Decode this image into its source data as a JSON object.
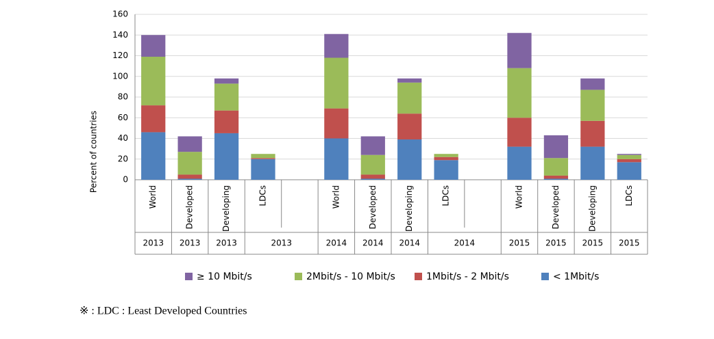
{
  "chart_data": {
    "type": "stacked_bar",
    "y_label": "Percent of countries",
    "categories": [
      "World",
      "Developed",
      "Developing",
      "LDCs",
      null,
      "World",
      "Developed",
      "Developing",
      "LDCs",
      null,
      "World",
      "Developed",
      "Developing",
      "LDCs"
    ],
    "years": [
      "2013",
      "2013",
      "2013",
      "2013",
      null,
      "2014",
      "2014",
      "2014",
      "2014",
      null,
      "2015",
      "2015",
      "2015",
      "2015"
    ],
    "series": [
      {
        "name": "< 1Mbit/s",
        "color": "#4f81bd",
        "values": [
          46,
          1,
          45,
          20,
          null,
          40,
          1,
          39,
          19,
          null,
          32,
          1,
          32,
          17
        ]
      },
      {
        "name": "1Mbit/s - 2 Mbit/s",
        "color": "#c0504d",
        "values": [
          26,
          4,
          22,
          1,
          null,
          29,
          4,
          25,
          3,
          null,
          28,
          3,
          25,
          3
        ]
      },
      {
        "name": "2Mbit/s - 10 Mbit/s",
        "color": "#9bbb59",
        "values": [
          47,
          22,
          26,
          4,
          null,
          49,
          19,
          30,
          3,
          null,
          48,
          17,
          30,
          4
        ]
      },
      {
        "name": "≥ 10 Mbit/s",
        "color": "#8064a2",
        "values": [
          21,
          15,
          5,
          0,
          null,
          23,
          18,
          4,
          0,
          null,
          34,
          22,
          11,
          1
        ]
      }
    ],
    "ylim": [
      0,
      160
    ],
    "yticks": [
      0,
      20,
      40,
      60,
      80,
      100,
      120,
      140,
      160
    ],
    "grid": true
  },
  "footnote": "※ : LDC : Least Developed Countries"
}
